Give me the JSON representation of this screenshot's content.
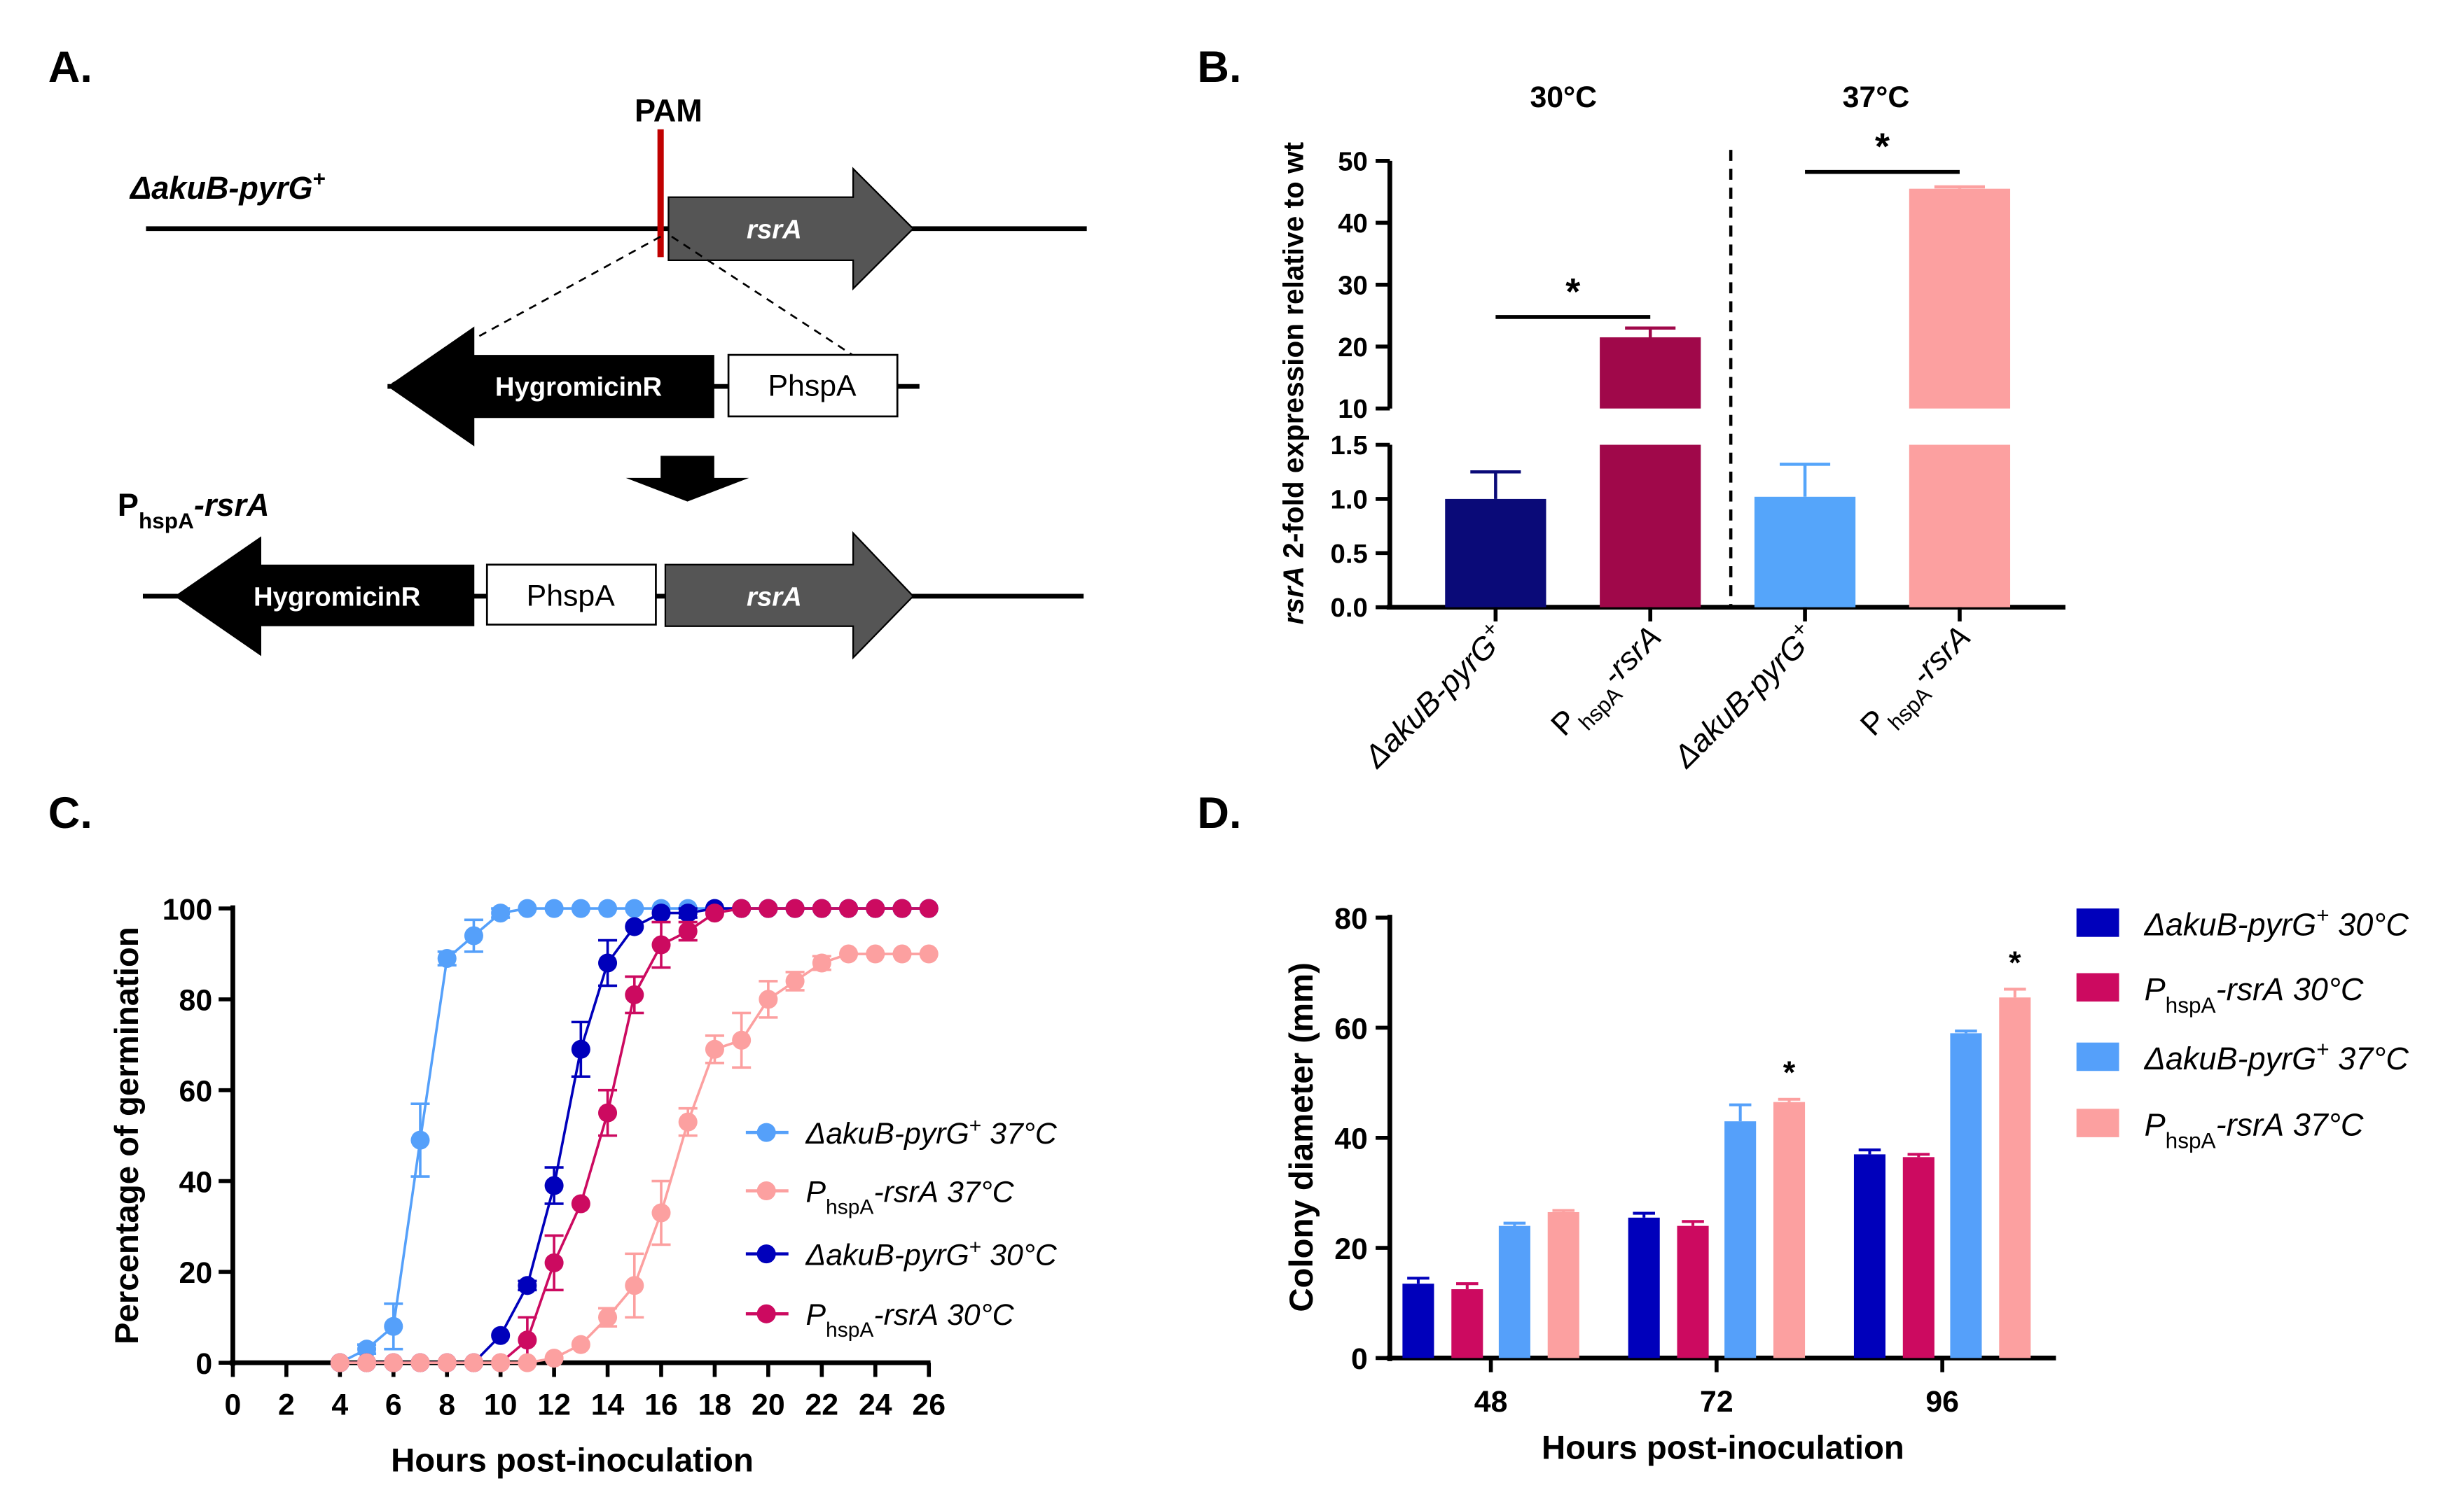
{
  "panels": {
    "a": "A.",
    "b": "B.",
    "c": "C.",
    "d": "D."
  },
  "diagram": {
    "pam": "PAM",
    "strain_top": {
      "main": "ΔakuB-pyrG",
      "sup": "+"
    },
    "strain_bottom": {
      "main": "P",
      "sub": "hspA",
      "rest": "-rsrA"
    },
    "gene": "rsrA",
    "marker": "HygromicinR",
    "promoter": "PhspA",
    "colors": {
      "pam": "#C00000",
      "gene": "#555555",
      "marker": "#000000"
    }
  },
  "chart_data": [
    {
      "type": "bar",
      "panel": "B",
      "groups": [
        "30°C",
        "37°C"
      ],
      "categories": [
        {
          "main": "ΔakuB-pyrG",
          "sup": "+"
        },
        {
          "main": "P",
          "sub": "hspA",
          "rest": "-rsrA"
        },
        {
          "main": "ΔakuB-pyrG",
          "sup": "+"
        },
        {
          "main": "P",
          "sub": "hspA",
          "rest": "-rsrA"
        }
      ],
      "values": [
        1.0,
        21.5,
        1.02,
        45.5
      ],
      "errors": [
        0.25,
        1.5,
        0.3,
        0.3
      ],
      "colors": [
        "#0A0A78",
        "#A0084A",
        "#55A5FA",
        "#FCA0A0"
      ],
      "ylabel": {
        "italic": "rsrA",
        "rest": " 2-fold expression relative to wt"
      },
      "axis_break": {
        "lower_range": [
          0,
          1.5
        ],
        "upper_range": [
          10,
          50
        ]
      },
      "yticks_lower": [
        "0.0",
        "0.5",
        "1.0",
        "1.5"
      ],
      "yticks_upper": [
        "10",
        "20",
        "30",
        "40",
        "50"
      ],
      "significance": [
        {
          "between": [
            0,
            1
          ],
          "label": "*"
        },
        {
          "between": [
            2,
            3
          ],
          "label": "*"
        }
      ]
    },
    {
      "type": "line",
      "panel": "C",
      "xlabel": "Hours post-inoculation",
      "ylabel": "Percentage of germination",
      "xlim": [
        0,
        26
      ],
      "ylim": [
        0,
        100
      ],
      "xticks": [
        "0",
        "2",
        "4",
        "6",
        "8",
        "10",
        "12",
        "14",
        "16",
        "18",
        "20",
        "22",
        "24",
        "26"
      ],
      "yticks": [
        "0",
        "20",
        "40",
        "60",
        "80",
        "100"
      ],
      "x": [
        4,
        5,
        6,
        7,
        8,
        9,
        10,
        11,
        12,
        13,
        14,
        15,
        16,
        17,
        18,
        19,
        20,
        21,
        22,
        23,
        24,
        25,
        26
      ],
      "legend_position": "right",
      "series": [
        {
          "name": {
            "main": "ΔakuB-pyrG",
            "sup": "+",
            "suffix": " 37°C"
          },
          "color": "#55A0FA",
          "values": [
            0,
            3,
            8,
            49,
            89,
            94,
            99,
            100,
            100,
            100,
            100,
            100,
            100,
            100,
            100,
            100,
            100,
            100,
            100,
            100,
            100,
            100,
            100
          ],
          "errors": [
            0,
            1,
            5,
            8,
            1.5,
            3.5,
            1,
            0,
            0,
            0,
            0,
            0,
            0,
            0,
            0,
            0,
            0,
            0,
            0,
            0,
            0,
            0,
            0
          ]
        },
        {
          "name": {
            "main": "P",
            "sub": "hspA",
            "rest": "-rsrA",
            "suffix": " 37°C"
          },
          "color": "#FCA0A0",
          "values": [
            0,
            0,
            0,
            0,
            0,
            0,
            0,
            0,
            1,
            4,
            10,
            17,
            33,
            53,
            69,
            71,
            80,
            84,
            88,
            90,
            90,
            90,
            90
          ],
          "errors": [
            0,
            0,
            0,
            0,
            0,
            0,
            0,
            0,
            0,
            0,
            2,
            7,
            7,
            3,
            3,
            6,
            4,
            2,
            1.5,
            0,
            0,
            0,
            0
          ]
        },
        {
          "name": {
            "main": "ΔakuB-pyrG",
            "sup": "+",
            "suffix": " 30°C"
          },
          "color": "#0000BB",
          "values": [
            0,
            0,
            0,
            0,
            0,
            0,
            6,
            17,
            39,
            69,
            88,
            96,
            99,
            99,
            100,
            100,
            100,
            100,
            100,
            100,
            100,
            100,
            100
          ],
          "errors": [
            0,
            0,
            0,
            0,
            0,
            0,
            0,
            1,
            4,
            6,
            5,
            0,
            0,
            1,
            0,
            0,
            0,
            0,
            0,
            0,
            0,
            0,
            0
          ]
        },
        {
          "name": {
            "main": "P",
            "sub": "hspA",
            "rest": "-rsrA",
            "suffix": " 30°C"
          },
          "color": "#CC0A60",
          "values": [
            0,
            0,
            0,
            0,
            0,
            0,
            0,
            5,
            22,
            35,
            55,
            81,
            92,
            95,
            99,
            100,
            100,
            100,
            100,
            100,
            100,
            100,
            100
          ],
          "errors": [
            0,
            0,
            0,
            0,
            0,
            0,
            0,
            5,
            6,
            0,
            5,
            4,
            5,
            2,
            0,
            0,
            0,
            0,
            0,
            0,
            0,
            0,
            0
          ]
        }
      ]
    },
    {
      "type": "bar",
      "panel": "D",
      "xlabel": "Hours post-inoculation",
      "ylabel": "Colony diameter (mm)",
      "ylim": [
        0,
        80
      ],
      "yticks": [
        "0",
        "20",
        "40",
        "60",
        "80"
      ],
      "categories": [
        "48",
        "72",
        "96"
      ],
      "legend_position": "right",
      "series": [
        {
          "name": {
            "main": "ΔakuB-pyrG",
            "sup": "+",
            "suffix": " 30°C"
          },
          "color": "#0000BB",
          "values": [
            13.5,
            25.5,
            37
          ],
          "errors": [
            1,
            0.8,
            0.8
          ]
        },
        {
          "name": {
            "main": "P",
            "sub": "hspA",
            "rest": "-rsrA",
            "suffix": " 30°C"
          },
          "color": "#CC0A60",
          "values": [
            12.5,
            24,
            36.5
          ],
          "errors": [
            1,
            0.8,
            0.5
          ]
        },
        {
          "name": {
            "main": "ΔakuB-pyrG",
            "sup": "+",
            "suffix": " 37°C"
          },
          "color": "#55A0FA",
          "values": [
            24,
            43,
            59
          ],
          "errors": [
            0.5,
            3,
            0.4
          ]
        },
        {
          "name": {
            "main": "P",
            "sub": "hspA",
            "rest": "-rsrA",
            "suffix": " 37°C"
          },
          "color": "#FCA0A0",
          "values": [
            26.5,
            46.5,
            65.5
          ],
          "errors": [
            0.3,
            0.5,
            1.5
          ]
        }
      ],
      "significance": [
        {
          "category": 1,
          "series": 3,
          "label": "*"
        },
        {
          "category": 2,
          "series": 3,
          "label": "*"
        }
      ]
    }
  ]
}
